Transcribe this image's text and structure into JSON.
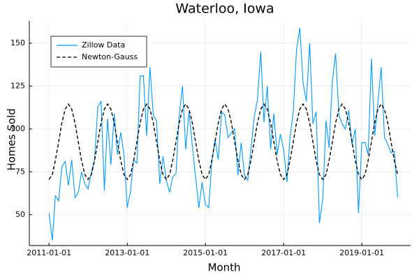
{
  "chart_data": {
    "type": "line",
    "title": "Waterloo, Iowa",
    "xlabel": "Month",
    "ylabel": "Homes Sold",
    "x": [
      "2011-01-01",
      "2011-02-01",
      "2011-03-01",
      "2011-04-01",
      "2011-05-01",
      "2011-06-01",
      "2011-07-01",
      "2011-08-01",
      "2011-09-01",
      "2011-10-01",
      "2011-11-01",
      "2011-12-01",
      "2012-01-01",
      "2012-02-01",
      "2012-03-01",
      "2012-04-01",
      "2012-05-01",
      "2012-06-01",
      "2012-07-01",
      "2012-08-01",
      "2012-09-01",
      "2012-10-01",
      "2012-11-01",
      "2012-12-01",
      "2013-01-01",
      "2013-02-01",
      "2013-03-01",
      "2013-04-01",
      "2013-05-01",
      "2013-06-01",
      "2013-07-01",
      "2013-08-01",
      "2013-09-01",
      "2013-10-01",
      "2013-11-01",
      "2013-12-01",
      "2014-01-01",
      "2014-02-01",
      "2014-03-01",
      "2014-04-01",
      "2014-05-01",
      "2014-06-01",
      "2014-07-01",
      "2014-08-01",
      "2014-09-01",
      "2014-10-01",
      "2014-11-01",
      "2014-12-01",
      "2015-01-01",
      "2015-02-01",
      "2015-03-01",
      "2015-04-01",
      "2015-05-01",
      "2015-06-01",
      "2015-07-01",
      "2015-08-01",
      "2015-09-01",
      "2015-10-01",
      "2015-11-01",
      "2015-12-01",
      "2016-01-01",
      "2016-02-01",
      "2016-03-01",
      "2016-04-01",
      "2016-05-01",
      "2016-06-01",
      "2016-07-01",
      "2016-08-01",
      "2016-09-01",
      "2016-10-01",
      "2016-11-01",
      "2016-12-01",
      "2017-01-01",
      "2017-02-01",
      "2017-03-01",
      "2017-04-01",
      "2017-05-01",
      "2017-06-01",
      "2017-07-01",
      "2017-08-01",
      "2017-09-01",
      "2017-10-01",
      "2017-11-01",
      "2017-12-01",
      "2018-01-01",
      "2018-02-01",
      "2018-03-01",
      "2018-04-01",
      "2018-05-01",
      "2018-06-01",
      "2018-07-01",
      "2018-08-01",
      "2018-09-01",
      "2018-10-01",
      "2018-11-01",
      "2018-12-01",
      "2019-01-01",
      "2019-02-01",
      "2019-03-01",
      "2019-04-01",
      "2019-05-01",
      "2019-06-01",
      "2019-07-01",
      "2019-08-01",
      "2019-09-01",
      "2019-10-01",
      "2019-11-01",
      "2019-12-01"
    ],
    "series": [
      {
        "name": "Zillow Data",
        "color": "#009af9",
        "dash": "solid",
        "values": [
          51,
          35,
          61,
          58,
          78,
          81,
          67,
          82,
          60,
          63,
          75,
          68,
          65,
          75,
          82,
          113,
          116,
          64,
          106,
          79,
          109,
          85,
          98,
          85,
          54,
          64,
          82,
          80,
          131,
          131,
          96,
          136,
          108,
          105,
          68,
          84,
          70,
          63,
          72,
          74,
          108,
          125,
          88,
          110,
          90,
          72,
          54,
          69,
          56,
          54,
          80,
          94,
          82,
          110,
          108,
          95,
          98,
          100,
          73,
          92,
          73,
          70,
          88,
          107,
          117,
          145,
          104,
          125,
          88,
          109,
          85,
          97,
          88,
          69,
          95,
          110,
          146,
          159,
          127,
          116,
          150,
          103,
          110,
          45,
          59,
          105,
          89,
          128,
          144,
          108,
          103,
          100,
          111,
          91,
          100,
          51,
          92,
          92,
          85,
          141,
          96,
          116,
          136,
          95,
          91,
          86,
          87,
          60
        ]
      },
      {
        "name": "Newton-Gauss",
        "color": "#000000",
        "dash": "dashed",
        "values": [
          70.5,
          73.45,
          81.5,
          92.5,
          103.5,
          111.55,
          114.5,
          111.55,
          103.5,
          92.5,
          81.5,
          73.45,
          70.5,
          73.45,
          81.5,
          92.5,
          103.5,
          111.55,
          114.5,
          111.55,
          103.5,
          92.5,
          81.5,
          73.45,
          70.5,
          73.45,
          81.5,
          92.5,
          103.5,
          111.55,
          114.5,
          111.55,
          103.5,
          92.5,
          81.5,
          73.45,
          70.5,
          73.45,
          81.5,
          92.5,
          103.5,
          111.55,
          114.5,
          111.55,
          103.5,
          92.5,
          81.5,
          73.45,
          70.5,
          73.45,
          81.5,
          92.5,
          103.5,
          111.55,
          114.5,
          111.55,
          103.5,
          92.5,
          81.5,
          73.45,
          70.5,
          73.45,
          81.5,
          92.5,
          103.5,
          111.55,
          114.5,
          111.55,
          103.5,
          92.5,
          81.5,
          73.45,
          70.5,
          73.45,
          81.5,
          92.5,
          103.5,
          111.55,
          114.5,
          111.55,
          103.5,
          92.5,
          81.5,
          73.45,
          70.5,
          73.45,
          81.5,
          92.5,
          103.5,
          111.55,
          114.5,
          111.55,
          103.5,
          92.5,
          81.5,
          73.45,
          70.5,
          73.45,
          81.5,
          92.5,
          103.5,
          111.55,
          114.5,
          111.55,
          103.5,
          92.5,
          81.5,
          73.45
        ]
      }
    ],
    "xlim": [
      "2010-07-01",
      "2020-04-01"
    ],
    "xticks": [
      "2011-01-01",
      "2013-01-01",
      "2015-01-01",
      "2017-01-01",
      "2019-01-01"
    ],
    "ylim": [
      32,
      163
    ],
    "yticks": [
      50,
      75,
      100,
      125,
      150
    ],
    "grid": true,
    "legend": "top-left"
  }
}
